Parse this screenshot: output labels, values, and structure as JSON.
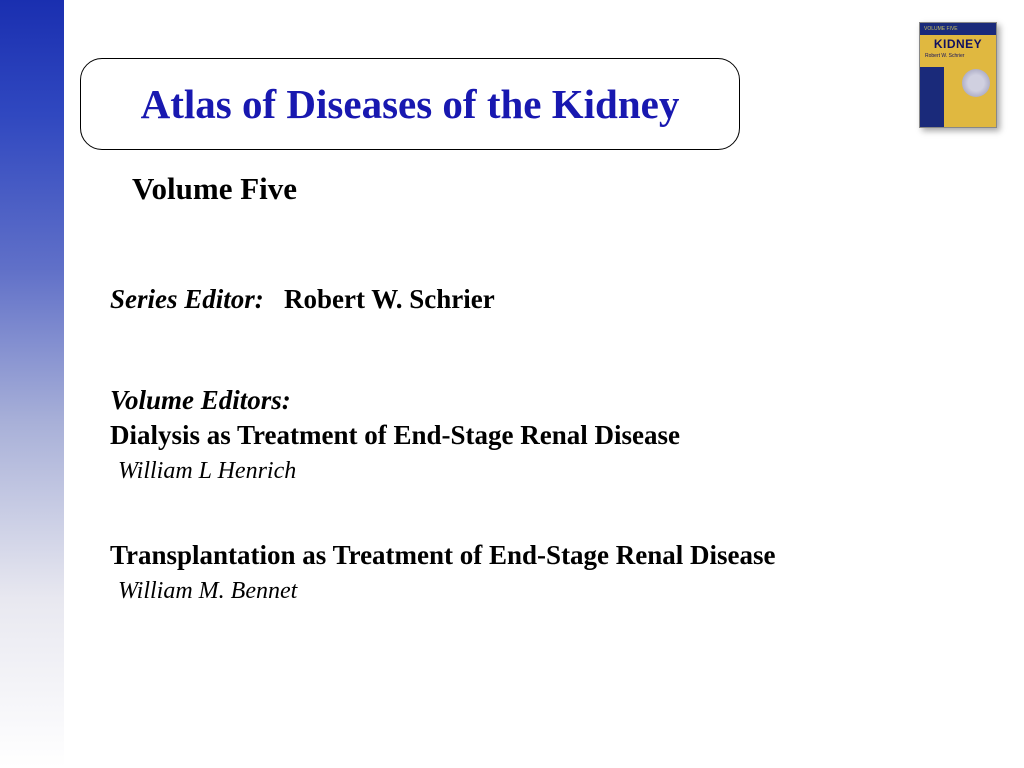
{
  "colors": {
    "title_color": "#1818b0",
    "text_color": "#000000",
    "gradient_top": "#1a2fb0",
    "gradient_bottom": "#ffffff",
    "cover_bg": "#e0b840",
    "cover_blue": "#1a2a7a"
  },
  "title": "Atlas of Diseases of the Kidney",
  "volume": "Volume Five",
  "series_editor": {
    "label": "Series Editor:",
    "name": "Robert W. Schrier"
  },
  "volume_editors_label": "Volume Editors:",
  "sections": [
    {
      "title": "Dialysis as Treatment of End-Stage Renal Disease",
      "editor": "William L Henrich"
    },
    {
      "title": "Transplantation as Treatment of End-Stage Renal Disease",
      "editor": "William M. Bennet"
    }
  ],
  "cover": {
    "topbar": "VOLUME FIVE",
    "label": "KIDNEY",
    "editor_line": "Robert W. Schrier"
  }
}
